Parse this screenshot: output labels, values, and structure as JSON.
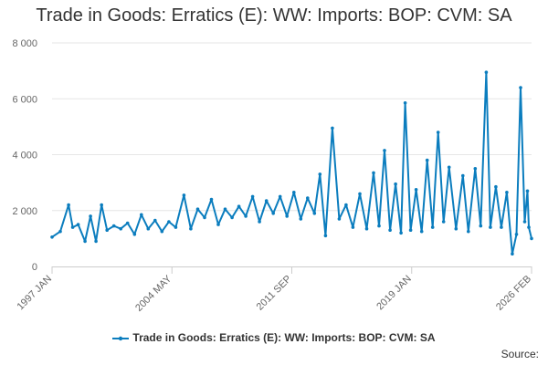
{
  "chart_data": {
    "type": "line",
    "title": "Trade in Goods: Erratics (E): WW: Imports: BOP: CVM: SA",
    "xlabel": "",
    "ylabel": "",
    "x_tick_labels": [
      "1997 JAN",
      "2004 MAY",
      "2011 SEP",
      "2019 JAN",
      "2026 FEB"
    ],
    "y_ticks": [
      0,
      2000,
      4000,
      6000,
      8000
    ],
    "y_tick_labels": [
      "0",
      "2 000",
      "4 000",
      "6 000",
      "8 000"
    ],
    "ylim": [
      0,
      8000
    ],
    "grid": true,
    "legend_position": "bottom",
    "color": "#0b7dbe",
    "series": [
      {
        "name": "Trade in Goods: Erratics (E): WW: Imports: BOP: CVM: SA",
        "points": [
          [
            "1997-01",
            1050
          ],
          [
            "1997-07",
            1250
          ],
          [
            "1998-01",
            2200
          ],
          [
            "1998-04",
            1400
          ],
          [
            "1998-08",
            1500
          ],
          [
            "1999-01",
            900
          ],
          [
            "1999-05",
            1800
          ],
          [
            "1999-09",
            900
          ],
          [
            "2000-01",
            2200
          ],
          [
            "2000-05",
            1300
          ],
          [
            "2000-10",
            1450
          ],
          [
            "2001-03",
            1350
          ],
          [
            "2001-08",
            1550
          ],
          [
            "2002-01",
            1150
          ],
          [
            "2002-06",
            1850
          ],
          [
            "2002-11",
            1350
          ],
          [
            "2003-04",
            1650
          ],
          [
            "2003-09",
            1250
          ],
          [
            "2004-02",
            1600
          ],
          [
            "2004-07",
            1400
          ],
          [
            "2005-01",
            2550
          ],
          [
            "2005-06",
            1350
          ],
          [
            "2005-11",
            2050
          ],
          [
            "2006-04",
            1750
          ],
          [
            "2006-09",
            2400
          ],
          [
            "2007-02",
            1500
          ],
          [
            "2007-07",
            2050
          ],
          [
            "2007-12",
            1750
          ],
          [
            "2008-05",
            2150
          ],
          [
            "2008-10",
            1800
          ],
          [
            "2009-03",
            2500
          ],
          [
            "2009-08",
            1600
          ],
          [
            "2010-01",
            2350
          ],
          [
            "2010-06",
            1900
          ],
          [
            "2010-11",
            2500
          ],
          [
            "2011-04",
            1800
          ],
          [
            "2011-09",
            2650
          ],
          [
            "2012-02",
            1700
          ],
          [
            "2012-07",
            2450
          ],
          [
            "2012-12",
            1900
          ],
          [
            "2013-04",
            3300
          ],
          [
            "2013-08",
            1100
          ],
          [
            "2014-01",
            4950
          ],
          [
            "2014-06",
            1700
          ],
          [
            "2014-11",
            2200
          ],
          [
            "2015-04",
            1400
          ],
          [
            "2015-09",
            2600
          ],
          [
            "2016-02",
            1350
          ],
          [
            "2016-07",
            3350
          ],
          [
            "2016-11",
            1450
          ],
          [
            "2017-03",
            4150
          ],
          [
            "2017-07",
            1300
          ],
          [
            "2017-11",
            2950
          ],
          [
            "2018-03",
            1200
          ],
          [
            "2018-06",
            5850
          ],
          [
            "2018-10",
            1300
          ],
          [
            "2019-02",
            2750
          ],
          [
            "2019-06",
            1250
          ],
          [
            "2019-10",
            3800
          ],
          [
            "2020-02",
            1400
          ],
          [
            "2020-06",
            4800
          ],
          [
            "2020-10",
            1600
          ],
          [
            "2021-02",
            3550
          ],
          [
            "2021-07",
            1350
          ],
          [
            "2021-12",
            3250
          ],
          [
            "2022-04",
            1250
          ],
          [
            "2022-09",
            3500
          ],
          [
            "2023-01",
            1450
          ],
          [
            "2023-05",
            6950
          ],
          [
            "2023-08",
            1400
          ],
          [
            "2023-12",
            2850
          ],
          [
            "2024-04",
            1400
          ],
          [
            "2024-08",
            2650
          ],
          [
            "2024-12",
            450
          ],
          [
            "2025-03",
            1150
          ],
          [
            "2025-06",
            6400
          ],
          [
            "2025-09",
            1600
          ],
          [
            "2025-11",
            2700
          ],
          [
            "2025-12",
            1400
          ],
          [
            "2026-02",
            1000
          ]
        ]
      }
    ]
  },
  "legend": {
    "label": "Trade in Goods: Erratics (E): WW: Imports: BOP: CVM: SA"
  },
  "footer": {
    "source_label": "Source:"
  }
}
